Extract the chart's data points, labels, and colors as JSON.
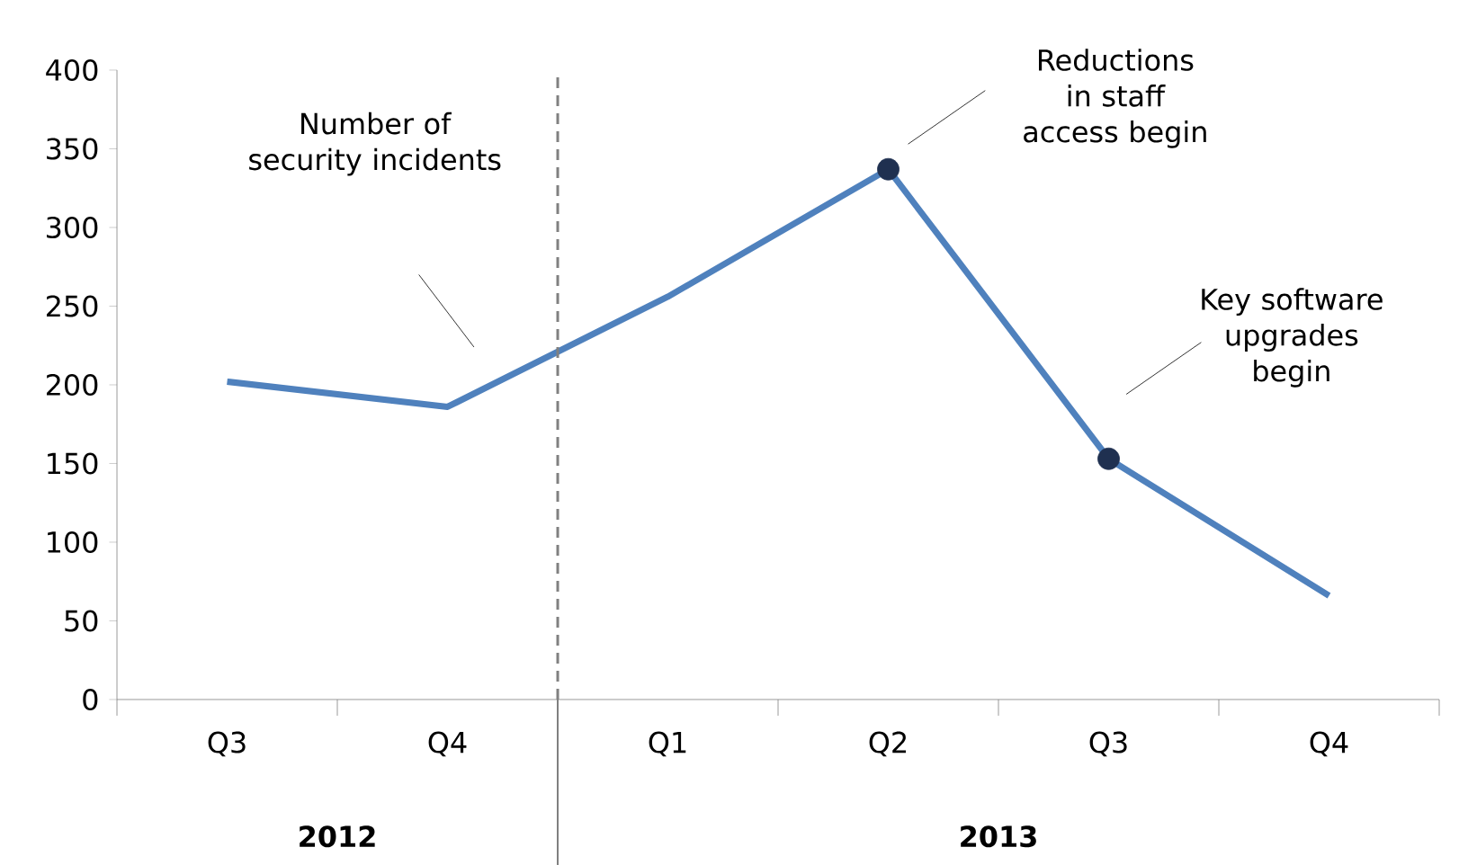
{
  "chart_data": {
    "type": "line",
    "categories": [
      "Q3",
      "Q4",
      "Q1",
      "Q2",
      "Q3",
      "Q4"
    ],
    "series": [
      {
        "color": "#4f81bd",
        "marker": "none",
        "line_style": "solid",
        "values": [
          202,
          186,
          256,
          337,
          153,
          66
        ]
      },
      {
        "type": "scatter",
        "color": "#1f3050",
        "marker": "circle",
        "values": [
          null,
          null,
          null,
          337,
          153,
          null
        ]
      }
    ],
    "ylim": [
      0,
      400
    ],
    "yticks": [
      0,
      50,
      100,
      150,
      200,
      250,
      300,
      350,
      400
    ],
    "grid": false,
    "annotations": [
      "Number of security incidents",
      "Reductions in staff access begin",
      "Key software upgrades begin",
      "**2012**",
      "**2013**"
    ]
  }
}
